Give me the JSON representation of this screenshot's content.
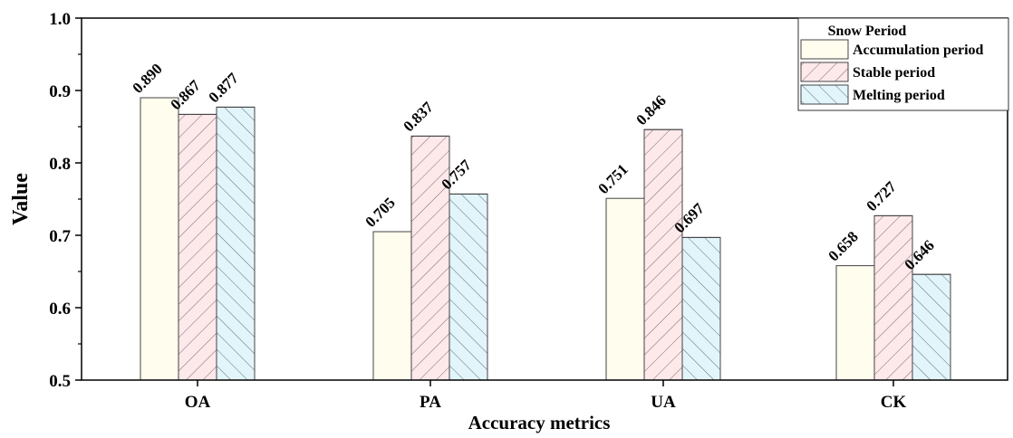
{
  "chart_data": {
    "type": "bar",
    "categories": [
      "OA",
      "PA",
      "UA",
      "CK"
    ],
    "series": [
      {
        "name": "Accumulation period",
        "values": [
          0.89,
          0.705,
          0.751,
          0.658
        ],
        "labels": [
          "0.890",
          "0.705",
          "0.751",
          "0.658"
        ],
        "color": "#fffdee",
        "pattern": "none"
      },
      {
        "name": "Stable period",
        "values": [
          0.867,
          0.837,
          0.846,
          0.727
        ],
        "labels": [
          "0.867",
          "0.837",
          "0.846",
          "0.727"
        ],
        "color": "#fde8ea",
        "pattern": "forward-hatch"
      },
      {
        "name": "Melting period",
        "values": [
          0.877,
          0.757,
          0.697,
          0.646
        ],
        "labels": [
          "0.877",
          "0.757",
          "0.697",
          "0.646"
        ],
        "color": "#e2f5fb",
        "pattern": "back-hatch"
      }
    ],
    "xlabel": "Accuracy metrics",
    "ylabel": "Value",
    "ylim": [
      0.5,
      1.0
    ],
    "yticks": [
      "0.5",
      "0.6",
      "0.7",
      "0.8",
      "0.9",
      "1.0"
    ],
    "yticks_values": [
      0.5,
      0.6,
      0.7,
      0.8,
      0.9,
      1.0
    ],
    "legend": {
      "title": "Snow Period",
      "position": "top-right"
    },
    "grid": false
  }
}
